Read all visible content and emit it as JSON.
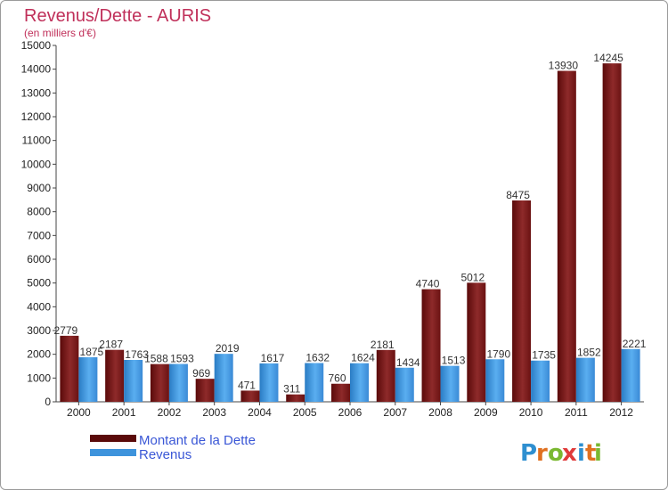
{
  "chart_data": {
    "type": "bar",
    "title": "Revenus/Dette - AURIS",
    "subtitle": "(en milliers d'€)",
    "categories": [
      "2000",
      "2001",
      "2002",
      "2003",
      "2004",
      "2005",
      "2006",
      "2007",
      "2008",
      "2009",
      "2010",
      "2011",
      "2012"
    ],
    "series": [
      {
        "name": "Montant de la Dette",
        "color": "#7a1818",
        "values": [
          2779,
          2187,
          1588,
          969,
          471,
          311,
          760,
          2181,
          4740,
          5012,
          8475,
          13930,
          14245
        ]
      },
      {
        "name": "Revenus",
        "color": "#3d93dc",
        "values": [
          1875,
          1763,
          1593,
          2019,
          1617,
          1632,
          1624,
          1434,
          1513,
          1790,
          1735,
          1852,
          2221
        ]
      }
    ],
    "ylim": [
      0,
      15000
    ],
    "yticks": [
      0,
      1000,
      2000,
      3000,
      4000,
      5000,
      6000,
      7000,
      8000,
      9000,
      10000,
      11000,
      12000,
      13000,
      14000,
      15000
    ],
    "grid": false,
    "legend_position": "bottom-left",
    "logo": {
      "text": "Proxiti",
      "letters": [
        "P",
        "r",
        "o",
        "x",
        "i",
        "t",
        "i"
      ],
      "colors": [
        "#2e8fd0",
        "#e07020",
        "#7ab830",
        "#e03a3a",
        "#2e8fd0",
        "#e07020",
        "#7ab830"
      ]
    }
  }
}
